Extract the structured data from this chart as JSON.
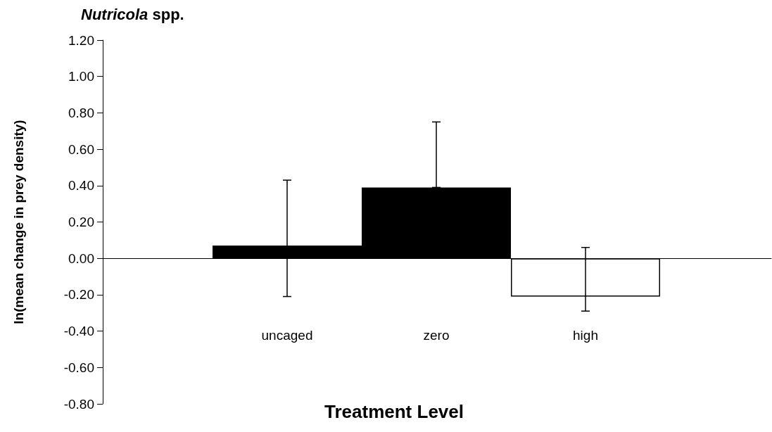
{
  "chart_data": {
    "type": "bar",
    "title": "Nutricola spp.",
    "xlabel": "Treatment Level",
    "ylabel": "ln(mean change in prey density)",
    "categories": [
      "uncaged",
      "zero",
      "high"
    ],
    "values": [
      0.07,
      0.39,
      -0.21
    ],
    "colors": [
      "#000000",
      "#000000",
      "#ffffff"
    ],
    "errors": [
      [
        -0.21,
        0.43
      ],
      [
        0.39,
        0.75
      ],
      [
        -0.29,
        0.06
      ]
    ],
    "ylim": [
      -0.8,
      1.2
    ],
    "yticks": [
      {
        "value": -0.8,
        "label": "-0.80"
      },
      {
        "value": -0.6,
        "label": "-0.60"
      },
      {
        "value": -0.4,
        "label": "-0.40"
      },
      {
        "value": -0.2,
        "label": "-0.20"
      },
      {
        "value": 0,
        "label": "0.00"
      },
      {
        "value": 0.2,
        "label": "0.20"
      },
      {
        "value": 0.4,
        "label": "0.40"
      },
      {
        "value": 0.6,
        "label": "0.60"
      },
      {
        "value": 0.8,
        "label": "0.80"
      },
      {
        "value": 1,
        "label": "1.00"
      },
      {
        "value": 1.2,
        "label": "1.20"
      }
    ],
    "data_labels": false
  }
}
